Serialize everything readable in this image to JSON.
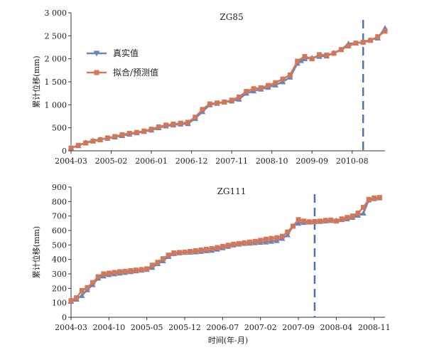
{
  "colors": {
    "actual": "#6a84b6",
    "fitted": "#d2785a",
    "axis": "#333333",
    "cutoff": "#4f74aa"
  },
  "chart_data": [
    {
      "type": "line",
      "title": "ZG85",
      "xlabel": "",
      "ylabel": "累计位移(mm)",
      "tick_labels_x": [
        "2004-03",
        "2005-02",
        "2006-01",
        "2006-12",
        "2007-11",
        "2008-10",
        "2009-09",
        "2010-08"
      ],
      "tick_labels_y": [
        "0",
        "500",
        "1 000",
        "1 500",
        "2 000",
        "2 500",
        "3 000"
      ],
      "ylim": [
        0,
        3000
      ],
      "xlim": [
        "2004-03",
        "2011-05"
      ],
      "cutoff": "2010-11",
      "legend": {
        "placement": "upper-left"
      },
      "series": [
        {
          "name": "真实值",
          "marker": "triangle",
          "color": "#6a84b6",
          "x": [
            "2004-03",
            "2004-05",
            "2004-07",
            "2004-09",
            "2004-11",
            "2005-01",
            "2005-03",
            "2005-05",
            "2005-07",
            "2005-09",
            "2005-11",
            "2006-01",
            "2006-03",
            "2006-05",
            "2006-07",
            "2006-09",
            "2006-11",
            "2007-01",
            "2007-03",
            "2007-05",
            "2007-07",
            "2007-09",
            "2007-11",
            "2008-01",
            "2008-03",
            "2008-05",
            "2008-07",
            "2008-09",
            "2008-11",
            "2009-01",
            "2009-03",
            "2009-05",
            "2009-06",
            "2009-07",
            "2009-09",
            "2009-11",
            "2010-01",
            "2010-03",
            "2010-05",
            "2010-07",
            "2010-09",
            "2010-11",
            "2011-01",
            "2011-03",
            "2011-05"
          ],
          "values": [
            70,
            110,
            180,
            220,
            250,
            270,
            300,
            330,
            360,
            390,
            420,
            450,
            500,
            540,
            560,
            580,
            590,
            700,
            850,
            1000,
            1030,
            1060,
            1080,
            1120,
            1250,
            1300,
            1340,
            1380,
            1430,
            1500,
            1600,
            1900,
            1960,
            2000,
            2020,
            2050,
            2060,
            2130,
            2200,
            2330,
            2340,
            2370,
            2410,
            2450,
            2670
          ]
        },
        {
          "name": "拟合/预测值",
          "marker": "square",
          "color": "#d2785a",
          "x": [
            "2004-03",
            "2004-05",
            "2004-07",
            "2004-09",
            "2004-11",
            "2005-01",
            "2005-03",
            "2005-05",
            "2005-07",
            "2005-09",
            "2005-11",
            "2006-01",
            "2006-03",
            "2006-05",
            "2006-07",
            "2006-09",
            "2006-11",
            "2007-01",
            "2007-03",
            "2007-05",
            "2007-07",
            "2007-09",
            "2007-11",
            "2008-01",
            "2008-03",
            "2008-05",
            "2008-07",
            "2008-09",
            "2008-11",
            "2009-01",
            "2009-03",
            "2009-05",
            "2009-07",
            "2009-09",
            "2009-11",
            "2010-01",
            "2010-03",
            "2010-05",
            "2010-07",
            "2010-09",
            "2010-11",
            "2011-01",
            "2011-03",
            "2011-05"
          ],
          "values": [
            60,
            120,
            170,
            210,
            240,
            280,
            310,
            350,
            380,
            400,
            430,
            470,
            520,
            560,
            580,
            600,
            620,
            730,
            900,
            1020,
            1040,
            1060,
            1100,
            1170,
            1290,
            1350,
            1370,
            1420,
            1480,
            1560,
            1650,
            1950,
            2050,
            2000,
            2090,
            2080,
            2120,
            2200,
            2280,
            2340,
            2360,
            2400,
            2480,
            2600
          ]
        }
      ]
    },
    {
      "type": "line",
      "title": "ZG111",
      "xlabel": "时间(年-月)",
      "ylabel": "累计位移(mm)",
      "tick_labels_x": [
        "2004-03",
        "2004-10",
        "2005-05",
        "2005-12",
        "2006-07",
        "2007-02",
        "2007-09",
        "2008-04",
        "2008-11"
      ],
      "tick_labels_y": [
        "0",
        "100",
        "200",
        "300",
        "400",
        "500",
        "600",
        "700",
        "800",
        "900"
      ],
      "ylim": [
        0,
        900
      ],
      "xlim": [
        "2004-03",
        "2009-01"
      ],
      "cutoff": "2007-12",
      "legend": {
        "placement": "none"
      },
      "series": [
        {
          "name": "真实值",
          "marker": "triangle",
          "color": "#6a84b6",
          "x": [
            "2004-03",
            "2004-04",
            "2004-05",
            "2004-06",
            "2004-07",
            "2004-08",
            "2004-09",
            "2004-10",
            "2004-11",
            "2004-12",
            "2005-01",
            "2005-02",
            "2005-03",
            "2005-04",
            "2005-05",
            "2005-06",
            "2005-07",
            "2005-08",
            "2005-09",
            "2005-10",
            "2005-11",
            "2005-12",
            "2006-01",
            "2006-02",
            "2006-03",
            "2006-04",
            "2006-05",
            "2006-06",
            "2006-07",
            "2006-08",
            "2006-09",
            "2006-10",
            "2006-11",
            "2006-12",
            "2007-01",
            "2007-02",
            "2007-03",
            "2007-04",
            "2007-05",
            "2007-06",
            "2007-07",
            "2007-08",
            "2007-09",
            "2007-10",
            "2007-11",
            "2007-12",
            "2008-01",
            "2008-02",
            "2008-03",
            "2008-04",
            "2008-05",
            "2008-06",
            "2008-07",
            "2008-08",
            "2008-09",
            "2008-10",
            "2008-11",
            "2008-12"
          ],
          "values": [
            110,
            125,
            150,
            190,
            225,
            270,
            285,
            295,
            300,
            305,
            310,
            315,
            320,
            325,
            330,
            345,
            370,
            390,
            420,
            440,
            445,
            448,
            450,
            452,
            455,
            460,
            462,
            470,
            480,
            490,
            500,
            505,
            510,
            512,
            515,
            518,
            520,
            525,
            530,
            545,
            570,
            630,
            650,
            655,
            658,
            660,
            662,
            665,
            668,
            670,
            675,
            680,
            690,
            705,
            720,
            810,
            820,
            825
          ]
        },
        {
          "name": "拟合/预测值",
          "marker": "square",
          "color": "#d2785a",
          "x": [
            "2004-03",
            "2004-04",
            "2004-05",
            "2004-06",
            "2004-07",
            "2004-08",
            "2004-09",
            "2004-10",
            "2004-11",
            "2004-12",
            "2005-01",
            "2005-02",
            "2005-03",
            "2005-04",
            "2005-05",
            "2005-06",
            "2005-07",
            "2005-08",
            "2005-09",
            "2005-10",
            "2005-11",
            "2005-12",
            "2006-01",
            "2006-02",
            "2006-03",
            "2006-04",
            "2006-05",
            "2006-06",
            "2006-07",
            "2006-08",
            "2006-09",
            "2006-10",
            "2006-11",
            "2006-12",
            "2007-01",
            "2007-02",
            "2007-03",
            "2007-04",
            "2007-05",
            "2007-06",
            "2007-07",
            "2007-08",
            "2007-09",
            "2007-10",
            "2007-11",
            "2007-12",
            "2008-01",
            "2008-02",
            "2008-03",
            "2008-04",
            "2008-05",
            "2008-06",
            "2008-07",
            "2008-08",
            "2008-09",
            "2008-10",
            "2008-11",
            "2008-12"
          ],
          "values": [
            115,
            135,
            185,
            205,
            240,
            280,
            300,
            305,
            310,
            315,
            318,
            322,
            326,
            330,
            335,
            360,
            380,
            405,
            430,
            445,
            448,
            450,
            455,
            460,
            465,
            470,
            475,
            482,
            490,
            498,
            505,
            510,
            515,
            520,
            525,
            532,
            540,
            545,
            550,
            560,
            590,
            630,
            675,
            665,
            660,
            662,
            665,
            670,
            672,
            665,
            680,
            690,
            700,
            720,
            760,
            815,
            825,
            828
          ]
        }
      ]
    }
  ]
}
